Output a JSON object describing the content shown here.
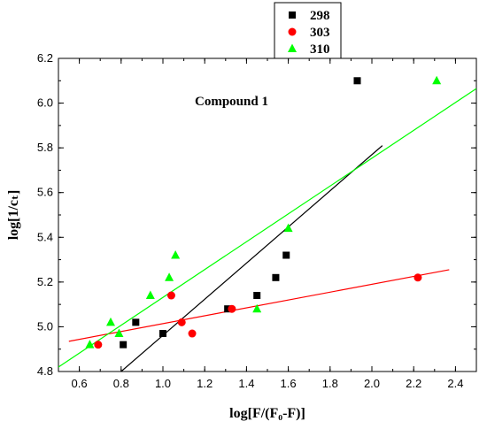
{
  "chart_data": {
    "type": "scatter",
    "title": "",
    "annotation": "Compound 1",
    "xlabel": "log[F/(F₀-F)]",
    "ylabel": "log[1/cₜ]",
    "xlim": [
      0.5,
      2.5
    ],
    "ylim": [
      4.8,
      6.2
    ],
    "xticks": [
      "0.6",
      "0.8",
      "1.0",
      "1.2",
      "1.4",
      "1.6",
      "1.8",
      "2.0",
      "2.2",
      "2.4"
    ],
    "yticks": [
      "4.8",
      "5.0",
      "5.2",
      "5.4",
      "5.6",
      "5.8",
      "6.0",
      "6.2"
    ],
    "grid": false,
    "legend_position": "top-center",
    "series": [
      {
        "name": "298",
        "marker": "square",
        "color": "#000000",
        "points": [
          [
            0.81,
            4.92
          ],
          [
            0.87,
            5.02
          ],
          [
            1.0,
            4.97
          ],
          [
            1.31,
            5.08
          ],
          [
            1.45,
            5.14
          ],
          [
            1.54,
            5.22
          ],
          [
            1.59,
            5.32
          ],
          [
            1.93,
            6.1
          ]
        ],
        "fit": [
          [
            0.8,
            4.8
          ],
          [
            2.05,
            5.81
          ]
        ]
      },
      {
        "name": "303",
        "marker": "circle",
        "color": "#ff0000",
        "points": [
          [
            0.69,
            4.92
          ],
          [
            1.04,
            5.14
          ],
          [
            1.09,
            5.02
          ],
          [
            1.14,
            4.97
          ],
          [
            1.33,
            5.08
          ],
          [
            2.22,
            5.22
          ]
        ],
        "fit": [
          [
            0.55,
            4.935
          ],
          [
            2.37,
            5.255
          ]
        ]
      },
      {
        "name": "310",
        "marker": "triangle",
        "color": "#00ff00",
        "points": [
          [
            0.65,
            4.92
          ],
          [
            0.75,
            5.02
          ],
          [
            0.79,
            4.97
          ],
          [
            0.94,
            5.14
          ],
          [
            1.03,
            5.22
          ],
          [
            1.06,
            5.32
          ],
          [
            1.45,
            5.08
          ],
          [
            1.6,
            5.44
          ],
          [
            2.31,
            6.1
          ]
        ],
        "fit": [
          [
            0.5,
            4.82
          ],
          [
            2.5,
            6.065
          ]
        ]
      }
    ]
  }
}
